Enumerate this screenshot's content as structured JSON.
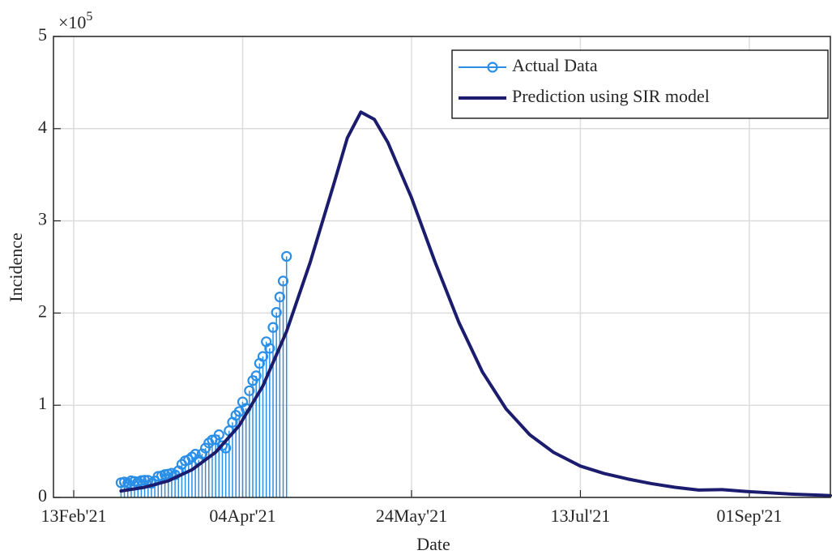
{
  "chart_data": {
    "type": "line",
    "x_label": "Date",
    "y_label": "Incidence",
    "y_multiplier": {
      "base": "×10",
      "exponent": "5"
    },
    "xlim": [
      "2021-02-07",
      "2021-09-25"
    ],
    "xticks": [
      {
        "value": "2021-02-13",
        "label": "13Feb'21"
      },
      {
        "value": "2021-04-04",
        "label": "04Apr'21"
      },
      {
        "value": "2021-05-24",
        "label": "24May'21"
      },
      {
        "value": "2021-07-13",
        "label": "13Jul'21"
      },
      {
        "value": "2021-09-01",
        "label": "01Sep'21"
      }
    ],
    "ylim": [
      0,
      500000
    ],
    "yticks": [
      {
        "value": 0,
        "label": "0"
      },
      {
        "value": 100000,
        "label": "1"
      },
      {
        "value": 200000,
        "label": "2"
      },
      {
        "value": 300000,
        "label": "3"
      },
      {
        "value": 400000,
        "label": "4"
      },
      {
        "value": 500000,
        "label": "5"
      }
    ],
    "grid": true,
    "legend": "top-right",
    "series": [
      {
        "name": "Actual Data",
        "kind": "stem",
        "color": "#2b8fe8",
        "x": [
          "2021-02-27",
          "2021-02-28",
          "2021-03-01",
          "2021-03-02",
          "2021-03-03",
          "2021-03-04",
          "2021-03-05",
          "2021-03-06",
          "2021-03-07",
          "2021-03-08",
          "2021-03-09",
          "2021-03-10",
          "2021-03-11",
          "2021-03-12",
          "2021-03-13",
          "2021-03-14",
          "2021-03-15",
          "2021-03-16",
          "2021-03-17",
          "2021-03-18",
          "2021-03-19",
          "2021-03-20",
          "2021-03-21",
          "2021-03-22",
          "2021-03-23",
          "2021-03-24",
          "2021-03-25",
          "2021-03-26",
          "2021-03-27",
          "2021-03-28",
          "2021-03-29",
          "2021-03-30",
          "2021-03-31",
          "2021-04-01",
          "2021-04-02",
          "2021-04-03",
          "2021-04-04",
          "2021-04-05",
          "2021-04-06",
          "2021-04-07",
          "2021-04-08",
          "2021-04-09",
          "2021-04-10",
          "2021-04-11",
          "2021-04-12",
          "2021-04-13",
          "2021-04-14",
          "2021-04-15",
          "2021-04-16",
          "2021-04-17"
        ],
        "values": [
          16000,
          16700,
          15500,
          18000,
          17400,
          16800,
          18300,
          18700,
          18600,
          15400,
          17900,
          22900,
          23300,
          24900,
          25300,
          26300,
          24500,
          28900,
          35900,
          39700,
          40900,
          43800,
          46900,
          40700,
          47300,
          53500,
          59100,
          62300,
          62600,
          68000,
          56200,
          53500,
          72300,
          81500,
          89100,
          93200,
          103600,
          96600,
          115700,
          126800,
          131900,
          145400,
          152900,
          168900,
          161700,
          184400,
          200700,
          217400,
          234700,
          261500
        ]
      },
      {
        "name": "Prediction using SIR model",
        "kind": "line",
        "color": "#1b1c6e",
        "x": [
          "2021-02-27",
          "2021-03-06",
          "2021-03-13",
          "2021-03-20",
          "2021-03-27",
          "2021-04-03",
          "2021-04-10",
          "2021-04-17",
          "2021-04-24",
          "2021-05-01",
          "2021-05-05",
          "2021-05-09",
          "2021-05-13",
          "2021-05-17",
          "2021-05-24",
          "2021-05-31",
          "2021-06-07",
          "2021-06-14",
          "2021-06-21",
          "2021-06-28",
          "2021-07-05",
          "2021-07-13",
          "2021-07-20",
          "2021-07-27",
          "2021-08-03",
          "2021-08-10",
          "2021-08-17",
          "2021-08-24",
          "2021-08-31",
          "2021-09-07",
          "2021-09-14",
          "2021-09-25"
        ],
        "values": [
          7000,
          11000,
          18000,
          30000,
          49000,
          78000,
          121000,
          180000,
          255000,
          340000,
          390000,
          418000,
          410000,
          385000,
          325000,
          255000,
          190000,
          136000,
          96000,
          68000,
          49000,
          34000,
          26000,
          20000,
          15000,
          11000,
          8000,
          8500,
          6500,
          5000,
          3500,
          2000
        ]
      }
    ]
  }
}
